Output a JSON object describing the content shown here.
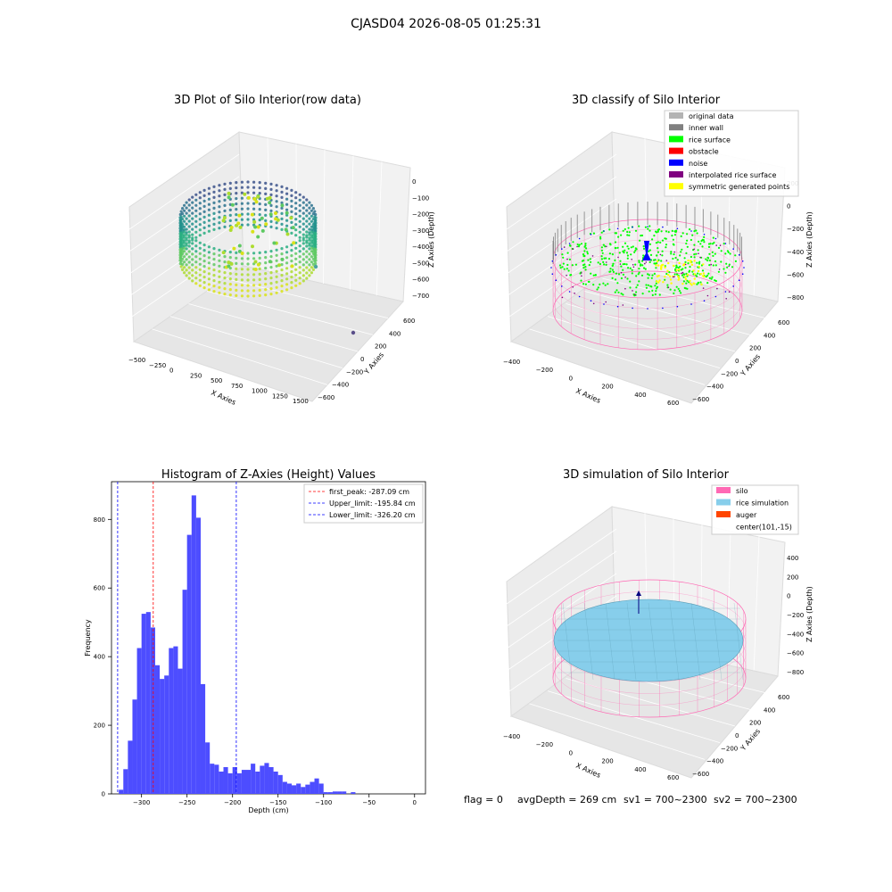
{
  "figure": {
    "suptitle": "CJASD04 2026-08-05 01:25:31",
    "status_line": {
      "flag": "flag = 0",
      "avg_depth": "avgDepth = 269 cm",
      "sv1": "sv1 = 700~2300",
      "sv2": "sv2 = 700~2300"
    }
  },
  "colors": {
    "bar": "#4d4dff",
    "peak_line": "#ff0000",
    "limit_line": "#0000ff",
    "silo": "#ff69b4",
    "rice_simulation": "#87ceeb",
    "auger": "#ff4500",
    "original": "#b3b3b3",
    "inner_wall": "#808080",
    "rice_surface": "#00ff00",
    "obstacle": "#ff0000",
    "noise": "#0000ff",
    "interpolated": "#800080",
    "symmetric": "#ffff00"
  },
  "chart_data": [
    {
      "type": "scatter",
      "title": "3D Plot of Silo Interior(row data)",
      "xlabel": "X Axies",
      "ylabel": "Y Axies",
      "zlabel": "Z Axies (Depth)",
      "x_ticks": [
        "−500",
        "−250",
        "0",
        "250",
        "500",
        "750",
        "1000",
        "1250",
        "1500"
      ],
      "y_ticks": [
        "−600",
        "−400",
        "−200",
        "0",
        "200",
        "400",
        "600"
      ],
      "z_ticks": [
        "0",
        "−100",
        "−200",
        "−300",
        "−400",
        "−500",
        "−600",
        "−700"
      ],
      "xlim": [
        -600,
        1500
      ],
      "ylim": [
        -650,
        650
      ],
      "zlim": [
        -750,
        50
      ]
    },
    {
      "type": "scatter",
      "title": "3D classify of Silo Interior",
      "xlabel": "X Axies",
      "ylabel": "Y Axies",
      "zlabel": "Z Axies (Depth)",
      "x_ticks": [
        "−400",
        "−200",
        "0",
        "200",
        "400",
        "600"
      ],
      "y_ticks": [
        "−600",
        "−400",
        "−200",
        "0",
        "200",
        "400",
        "600"
      ],
      "z_ticks": [
        "200",
        "0",
        "−200",
        "−400",
        "−600",
        "−800"
      ],
      "legend": [
        "original data",
        "inner wall",
        "rice surface",
        "obstacle",
        "noise",
        "interpolated rice surface",
        "symmetric generated points"
      ],
      "legend_placement": "top-right"
    },
    {
      "type": "bar",
      "title": "Histogram of Z-Axies (Height) Values",
      "xlabel": "Depth (cm)",
      "ylabel": "Frequency",
      "xlim": [
        -333,
        12
      ],
      "ylim": [
        0,
        910
      ],
      "x_ticks": [
        -300,
        -250,
        -200,
        -150,
        -100,
        -50,
        0
      ],
      "y_ticks": [
        0,
        200,
        400,
        600,
        800
      ],
      "bin_start": -325,
      "bin_width": 5,
      "values": [
        12,
        72,
        155,
        275,
        425,
        525,
        530,
        485,
        375,
        335,
        345,
        425,
        430,
        365,
        595,
        755,
        870,
        805,
        320,
        150,
        88,
        85,
        65,
        78,
        60,
        78,
        60,
        70,
        70,
        88,
        65,
        82,
        90,
        78,
        65,
        55,
        35,
        30,
        25,
        30,
        20,
        27,
        35,
        45,
        30,
        5,
        5,
        7,
        7,
        7,
        0,
        5
      ],
      "vlines": [
        {
          "label": "first_peak: -287.09 cm",
          "x": -287.09,
          "color": "#ff0000"
        },
        {
          "label": "Upper_limit: -195.84 cm",
          "x": -195.84,
          "color": "#0000ff"
        },
        {
          "label": "Lower_limit: -326.20 cm",
          "x": -326.2,
          "color": "#0000ff"
        }
      ],
      "legend_placement": "top-right"
    },
    {
      "type": "scatter",
      "title": "3D simulation of Silo Interior",
      "xlabel": "X Axies",
      "ylabel": "Y Axies",
      "zlabel": "Z Axies (Depth)",
      "x_ticks": [
        "−400",
        "−200",
        "0",
        "200",
        "400",
        "600"
      ],
      "y_ticks": [
        "−600",
        "−400",
        "−200",
        "0",
        "200",
        "400",
        "600"
      ],
      "z_ticks": [
        "400",
        "200",
        "0",
        "−200",
        "−400",
        "−600",
        "−800"
      ],
      "legend": [
        "silo",
        "rice simulation",
        "auger",
        "center(101,-15)"
      ],
      "legend_placement": "top-right"
    }
  ]
}
